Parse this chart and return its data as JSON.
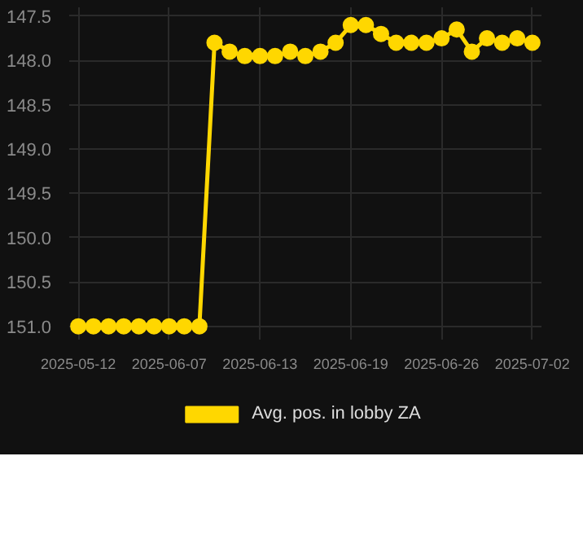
{
  "chart_data": {
    "type": "line",
    "categories": [
      "2025-05-12",
      null,
      null,
      null,
      null,
      null,
      "2025-06-07",
      null,
      null,
      null,
      null,
      null,
      "2025-06-13",
      null,
      null,
      null,
      null,
      null,
      "2025-06-19",
      null,
      null,
      null,
      null,
      null,
      "2025-06-26",
      null,
      null,
      null,
      null,
      null,
      "2025-07-02"
    ],
    "series": [
      {
        "name": "Avg. pos. in lobby ZA",
        "color": "#ffd700",
        "values": [
          151.0,
          151.0,
          151.0,
          151.0,
          151.0,
          151.0,
          151.0,
          151.0,
          151.0,
          147.8,
          147.9,
          147.95,
          147.95,
          147.95,
          147.9,
          147.95,
          147.9,
          147.8,
          147.6,
          147.6,
          147.7,
          147.8,
          147.8,
          147.8,
          147.75,
          147.65,
          147.9,
          147.75,
          147.8,
          147.75,
          147.8
        ]
      }
    ],
    "ylim": [
      151.15,
      147.4
    ],
    "yticks": [
      {
        "value": 147.5,
        "label": "147.5"
      },
      {
        "value": 148.0,
        "label": "148.0"
      },
      {
        "value": 148.5,
        "label": "148.5"
      },
      {
        "value": 149.0,
        "label": "149.0"
      },
      {
        "value": 149.5,
        "label": "149.5"
      },
      {
        "value": 150.0,
        "label": "150.0"
      },
      {
        "value": 150.5,
        "label": "150.5"
      },
      {
        "value": 151.0,
        "label": "151.0"
      }
    ],
    "grid": true,
    "legend": "bottom",
    "marker": "circle",
    "line_style": "solid"
  }
}
